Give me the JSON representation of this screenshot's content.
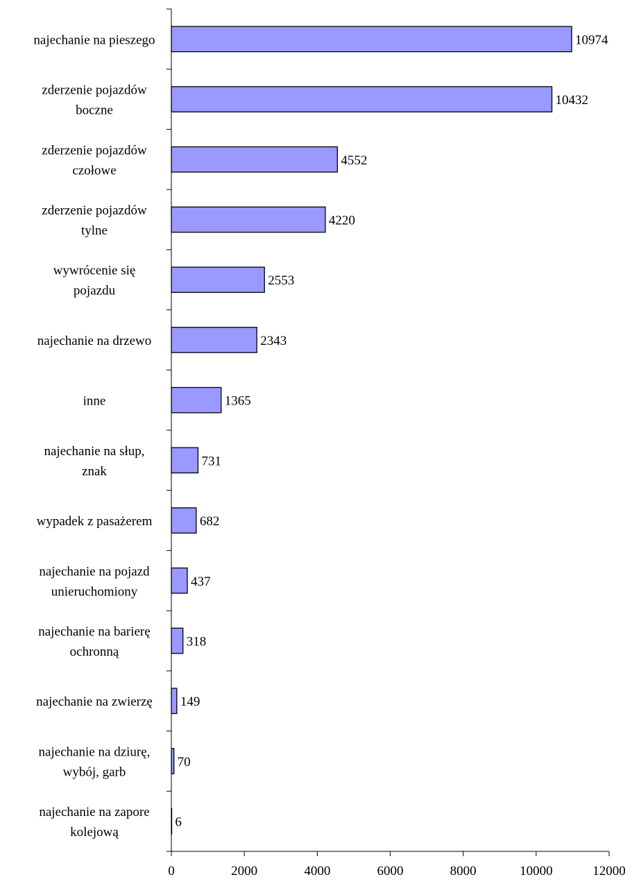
{
  "chart_data": {
    "type": "bar",
    "orientation": "horizontal",
    "title": "",
    "xlabel": "",
    "ylabel": "",
    "xlim": [
      0,
      12000
    ],
    "x_ticks": [
      0,
      2000,
      4000,
      6000,
      8000,
      10000,
      12000
    ],
    "x_tick_labels": [
      "0",
      "2000",
      "4000",
      "6000",
      "8000",
      "10000",
      "12000"
    ],
    "grid": false,
    "legend": "none",
    "bar_color": "#9999ff",
    "bar_stroke": "#000000",
    "categories": [
      [
        "najechanie na pieszego"
      ],
      [
        "zderzenie pojazdów",
        "boczne"
      ],
      [
        "zderzenie pojazdów",
        "czołowe"
      ],
      [
        "zderzenie pojazdów",
        "tylne"
      ],
      [
        "wywrócenie się",
        "pojazdu"
      ],
      [
        "najechanie na drzewo"
      ],
      [
        "inne"
      ],
      [
        "najechanie na słup,",
        "znak"
      ],
      [
        "wypadek z pasażerem"
      ],
      [
        "najechanie na pojazd",
        "unieruchomiony"
      ],
      [
        "najechanie na barierę",
        "ochronną"
      ],
      [
        "najechanie na zwierzę"
      ],
      [
        "najechanie na dziurę,",
        "wybój, garb"
      ],
      [
        "najechanie na zapore",
        "kolejową"
      ]
    ],
    "values": [
      10974,
      10432,
      4552,
      4220,
      2553,
      2343,
      1365,
      731,
      682,
      437,
      318,
      149,
      70,
      6
    ],
    "data_labels": [
      "10974",
      "10432",
      "4552",
      "4220",
      "2553",
      "2343",
      "1365",
      "731",
      "682",
      "437",
      "318",
      "149",
      "70",
      "6"
    ]
  }
}
